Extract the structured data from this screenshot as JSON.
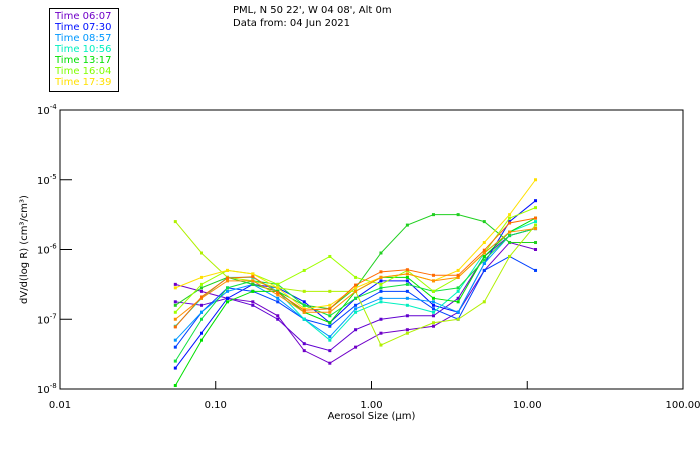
{
  "chart_data": {
    "type": "line",
    "title_lines": [
      "PML, N 50 22', W 04 08', Alt 0m",
      "Data from: 04 Jun 2021"
    ],
    "xlabel": "Aerosol Size (µm)",
    "ylabel": "dV/d(log R) (cm³/cm³)",
    "xscale": "log",
    "yscale": "log",
    "xlim": [
      0.01,
      100
    ],
    "ylim": [
      1e-08,
      0.0001
    ],
    "xticks": [
      "0.01",
      "0.10",
      "1.00",
      "10.00",
      "100.00"
    ],
    "yticks": [
      {
        "base": "10",
        "exp": "-4"
      },
      {
        "base": "10",
        "exp": "-5"
      },
      {
        "base": "10",
        "exp": "-6"
      },
      {
        "base": "10",
        "exp": "-7"
      },
      {
        "base": "10",
        "exp": "-8"
      }
    ],
    "grid": false,
    "legend_position": "top-left (outside plot)",
    "legend": [
      {
        "label": "Time 06:07",
        "color": "#7000c8"
      },
      {
        "label": "Time 07:30",
        "color": "#0010ff"
      },
      {
        "label": "Time 08:57",
        "color": "#0098ff"
      },
      {
        "label": "Time 10:56",
        "color": "#00f0c0"
      },
      {
        "label": "Time 13:17",
        "color": "#00e000"
      },
      {
        "label": "Time 16:04",
        "color": "#80ff00"
      },
      {
        "label": "Time 17:39",
        "color": "#ffe000"
      }
    ],
    "x": [
      0.055,
      0.081,
      0.119,
      0.173,
      0.25,
      0.37,
      0.54,
      0.79,
      1.15,
      1.7,
      2.5,
      3.6,
      5.3,
      7.7,
      11.3
    ],
    "series_note": "y values given as log10 of dV/d(log R)",
    "series": [
      {
        "color": "#7000c8",
        "log10_values": [
          -6.5,
          -6.6,
          -6.7,
          -6.75,
          -6.95,
          -7.45,
          -7.63,
          -7.4,
          -7.2,
          -7.15,
          -7.1,
          -6.9,
          -6.3,
          -5.9,
          -6.0
        ]
      },
      {
        "color": "#6000d0",
        "log10_values": [
          -6.75,
          -6.8,
          -6.7,
          -6.8,
          -7.0,
          -7.35,
          -7.45,
          -7.15,
          -7.0,
          -6.95,
          -6.95,
          -6.7,
          -6.1,
          -5.8,
          -5.7
        ]
      },
      {
        "color": "#0010ff",
        "log10_values": [
          -7.7,
          -7.2,
          -6.7,
          -6.5,
          -6.55,
          -6.75,
          -7.05,
          -6.7,
          -6.45,
          -6.45,
          -6.8,
          -6.9,
          -6.2,
          -5.6,
          -5.3
        ]
      },
      {
        "color": "#0040ff",
        "log10_values": [
          -7.4,
          -6.9,
          -6.55,
          -6.6,
          -6.75,
          -7.0,
          -7.1,
          -6.8,
          -6.6,
          -6.6,
          -6.85,
          -7.0,
          -6.3,
          -6.1,
          -6.3
        ]
      },
      {
        "color": "#0098ff",
        "log10_values": [
          -7.3,
          -6.9,
          -6.6,
          -6.5,
          -6.7,
          -7.0,
          -7.25,
          -6.85,
          -6.7,
          -6.7,
          -6.75,
          -6.9,
          -6.2,
          -5.8,
          -5.7
        ]
      },
      {
        "color": "#00f0c0",
        "log10_values": [
          -7.1,
          -6.7,
          -6.4,
          -6.4,
          -6.6,
          -7.0,
          -7.3,
          -6.9,
          -6.75,
          -6.8,
          -6.9,
          -6.6,
          -6.05,
          -5.75,
          -5.6
        ]
      },
      {
        "color": "#00e000",
        "log10_values": [
          -7.95,
          -7.3,
          -6.75,
          -6.6,
          -6.6,
          -6.9,
          -7.05,
          -6.6,
          -6.4,
          -6.4,
          -6.7,
          -6.75,
          -6.1,
          -5.75,
          -5.55
        ]
      },
      {
        "color": "#20d020",
        "log10_values": [
          -6.8,
          -6.55,
          -6.4,
          -6.5,
          -6.6,
          -6.8,
          -6.85,
          -6.55,
          -6.05,
          -5.65,
          -5.5,
          -5.5,
          -5.6,
          -5.9,
          -5.9
        ]
      },
      {
        "color": "#10e040",
        "log10_values": [
          -7.6,
          -7.0,
          -6.55,
          -6.45,
          -6.5,
          -6.8,
          -6.95,
          -6.7,
          -6.55,
          -6.5,
          -6.6,
          -6.55,
          -6.15,
          -5.8,
          -5.7
        ]
      },
      {
        "color": "#b0f000",
        "log10_values": [
          -5.6,
          -6.05,
          -6.4,
          -6.45,
          -6.55,
          -6.6,
          -6.6,
          -6.6,
          -7.37,
          -7.2,
          -7.05,
          -7.0,
          -6.75,
          -6.1,
          -5.65
        ]
      },
      {
        "color": "#a0ff00",
        "log10_values": [
          -6.9,
          -6.5,
          -6.3,
          -6.35,
          -6.5,
          -6.3,
          -6.1,
          -6.4,
          -6.5,
          -6.3,
          -6.6,
          -6.4,
          -6.05,
          -5.55,
          -5.4
        ]
      },
      {
        "color": "#ffe000",
        "log10_values": [
          -6.55,
          -6.4,
          -6.3,
          -6.35,
          -6.55,
          -6.85,
          -6.8,
          -6.55,
          -6.4,
          -6.35,
          -6.45,
          -6.3,
          -5.9,
          -5.5,
          -5.0
        ]
      },
      {
        "color": "#ff9000",
        "log10_values": [
          -7.0,
          -6.7,
          -6.45,
          -6.45,
          -6.65,
          -6.9,
          -6.9,
          -6.6,
          -6.4,
          -6.35,
          -6.45,
          -6.4,
          -6.05,
          -5.75,
          -5.7
        ]
      },
      {
        "color": "#ff6a00",
        "log10_values": [
          -7.11,
          -6.68,
          -6.41,
          -6.39,
          -6.62,
          -6.87,
          -6.85,
          -6.51,
          -6.32,
          -6.29,
          -6.37,
          -6.37,
          -6.01,
          -5.62,
          -5.55
        ]
      }
    ]
  }
}
